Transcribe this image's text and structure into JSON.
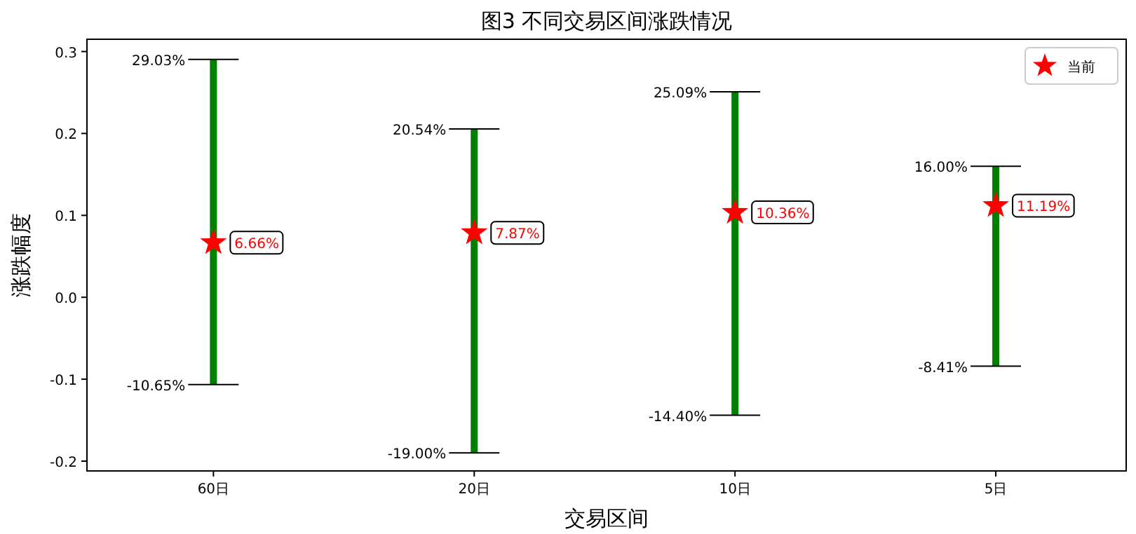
{
  "chart_data": {
    "type": "bar",
    "title": "图3  不同交易区间涨跌情况",
    "xlabel": "交易区间",
    "ylabel": "涨跌幅度",
    "categories": [
      "60日",
      "20日",
      "10日",
      "5日"
    ],
    "series": [
      {
        "color": "#008000",
        "base": [
          -0.1065,
          -0.19,
          -0.144,
          -0.0841
        ],
        "values": [
          0.3968,
          0.3954,
          0.3949,
          0.2441
        ]
      },
      {
        "type": "scatter",
        "name": "当前",
        "color": "#ff0000",
        "marker": "star",
        "x": [
          "60日",
          "20日",
          "10日",
          "5日"
        ],
        "values": [
          0.0666,
          0.0787,
          0.1036,
          0.1119
        ],
        "value_labels": [
          "6.66%",
          "7.87%",
          "10.36%",
          "11.19%"
        ]
      }
    ],
    "annotations": [
      {
        "text": "29.03%",
        "x": "60日",
        "y": 0.2903
      },
      {
        "text": "-10.65%",
        "x": "60日",
        "y": -0.1065
      },
      {
        "text": "20.54%",
        "x": "20日",
        "y": 0.2054
      },
      {
        "text": "-19.00%",
        "x": "20日",
        "y": -0.19
      },
      {
        "text": "25.09%",
        "x": "10日",
        "y": 0.2509
      },
      {
        "text": "-14.40%",
        "x": "10日",
        "y": -0.144
      },
      {
        "text": "16.00%",
        "x": "5日",
        "y": 0.16
      },
      {
        "text": "-8.41%",
        "x": "5日",
        "y": -0.0841
      }
    ],
    "ylim": [
      -0.212,
      0.315
    ],
    "yticks": [
      {
        "value": -0.2,
        "label": "-0.2"
      },
      {
        "value": -0.1,
        "label": "-0.1"
      },
      {
        "value": 0,
        "label": "0.0"
      },
      {
        "value": 0.1,
        "label": "0.1"
      },
      {
        "value": 0.2,
        "label": "0.2"
      },
      {
        "value": 0.3,
        "label": "0.3"
      }
    ],
    "legend": "top right"
  }
}
